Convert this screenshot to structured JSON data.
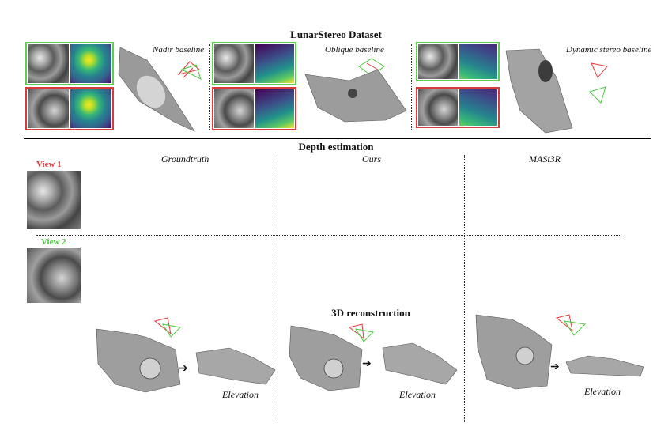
{
  "top": {
    "title": "LunarStereo Dataset",
    "panels": [
      {
        "label": "Nadir baseline"
      },
      {
        "label": "Oblique baseline"
      },
      {
        "label": "Dynamic stereo baseline"
      }
    ]
  },
  "depth": {
    "title": "Depth estimation",
    "columns": [
      "Groundtruth",
      "Ours",
      "MASt3R"
    ],
    "view1": "View 1",
    "view2": "View 2"
  },
  "recon": {
    "title": "3D reconstruction",
    "elevation": "Elevation"
  },
  "colors": {
    "view1": "#e23b3b",
    "view2": "#4cc93e",
    "green_frame": "#5ccf4e",
    "red_frame": "#d83b3b"
  }
}
